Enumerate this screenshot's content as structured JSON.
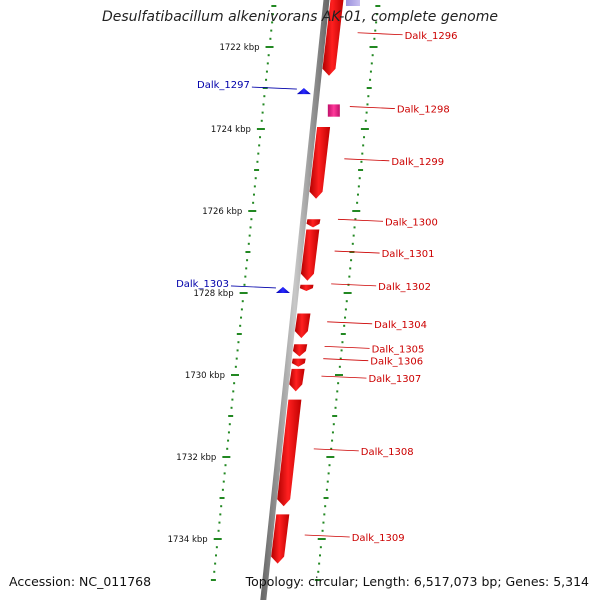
{
  "title": "Desulfatibacillum alkenivorans AK-01, complete genome",
  "footer": {
    "accession": "Accession: NC_011768",
    "topology": "Topology: circular; Length: 6,517,073 bp; Genes: 5,314"
  },
  "colors": {
    "forward_gene": "#ff0000",
    "reverse_gene": "#0000ff",
    "rna_gene": "#e0187c",
    "ticks": "#228822",
    "backbone": "#888888"
  },
  "scale_labels": [
    {
      "label": "1722 kbp",
      "position_kbp": 1722
    },
    {
      "label": "1724 kbp",
      "position_kbp": 1724
    },
    {
      "label": "1726 kbp",
      "position_kbp": 1726
    },
    {
      "label": "1728 kbp",
      "position_kbp": 1728
    },
    {
      "label": "1730 kbp",
      "position_kbp": 1730
    },
    {
      "label": "1732 kbp",
      "position_kbp": 1732
    },
    {
      "label": "1734 kbp",
      "position_kbp": 1734
    }
  ],
  "genes": [
    {
      "label": "Dalk_1296",
      "strand": "forward",
      "start_kbp": 1720.8,
      "end_kbp": 1722.7
    },
    {
      "label": "Dalk_1297",
      "strand": "reverse",
      "start_kbp": 1723.0,
      "end_kbp": 1723.15
    },
    {
      "label": "Dalk_1298",
      "strand": "forward",
      "start_kbp": 1723.4,
      "end_kbp": 1723.7,
      "rna": true
    },
    {
      "label": "Dalk_1299",
      "strand": "forward",
      "start_kbp": 1723.95,
      "end_kbp": 1725.7
    },
    {
      "label": "Dalk_1300",
      "strand": "forward",
      "start_kbp": 1726.2,
      "end_kbp": 1726.4
    },
    {
      "label": "Dalk_1301",
      "strand": "forward",
      "start_kbp": 1726.45,
      "end_kbp": 1727.7
    },
    {
      "label": "Dalk_1302",
      "strand": "forward",
      "start_kbp": 1727.8,
      "end_kbp": 1727.95
    },
    {
      "label": "Dalk_1303",
      "strand": "reverse",
      "start_kbp": 1727.85,
      "end_kbp": 1728.0
    },
    {
      "label": "Dalk_1304",
      "strand": "forward",
      "start_kbp": 1728.5,
      "end_kbp": 1729.1
    },
    {
      "label": "Dalk_1305",
      "strand": "forward",
      "start_kbp": 1729.25,
      "end_kbp": 1729.55
    },
    {
      "label": "Dalk_1306",
      "strand": "forward",
      "start_kbp": 1729.6,
      "end_kbp": 1729.8
    },
    {
      "label": "Dalk_1307",
      "strand": "forward",
      "start_kbp": 1729.85,
      "end_kbp": 1730.4
    },
    {
      "label": "Dalk_1308",
      "strand": "forward",
      "start_kbp": 1730.6,
      "end_kbp": 1733.2
    },
    {
      "label": "Dalk_1309",
      "strand": "forward",
      "start_kbp": 1733.4,
      "end_kbp": 1734.6
    }
  ]
}
